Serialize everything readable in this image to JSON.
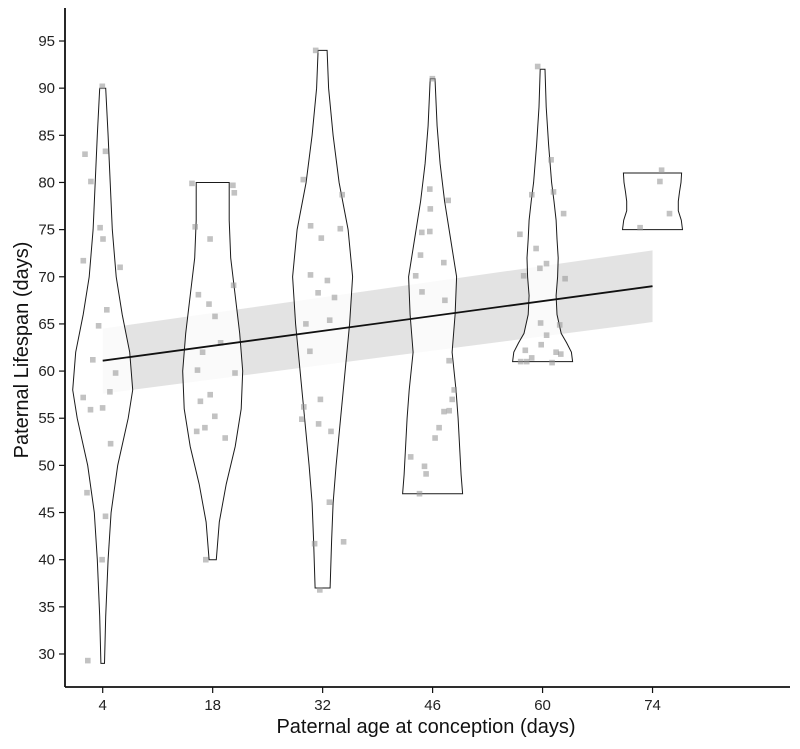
{
  "chart_data": {
    "type": "violin",
    "title": "",
    "xlabel": "Paternal age at conception (days)",
    "ylabel": "Paternal Lifespan (days)",
    "x_ticks": [
      4,
      18,
      32,
      46,
      60,
      74
    ],
    "y_ticks": [
      30,
      35,
      40,
      45,
      50,
      55,
      60,
      65,
      70,
      75,
      80,
      85,
      90,
      95
    ],
    "xlim": [
      -0.8,
      91.5
    ],
    "ylim": [
      26.5,
      98.5
    ],
    "grid": false,
    "legend": "none",
    "violins": [
      {
        "x": 4,
        "range": [
          29,
          90
        ],
        "profile": [
          [
            29,
            0.06
          ],
          [
            34,
            0.1
          ],
          [
            40,
            0.18
          ],
          [
            45,
            0.28
          ],
          [
            50,
            0.5
          ],
          [
            55,
            0.85
          ],
          [
            58,
            1.0
          ],
          [
            62,
            0.9
          ],
          [
            66,
            0.65
          ],
          [
            70,
            0.45
          ],
          [
            75,
            0.32
          ],
          [
            80,
            0.25
          ],
          [
            85,
            0.18
          ],
          [
            90,
            0.1
          ]
        ]
      },
      {
        "x": 18,
        "range": [
          40,
          80
        ],
        "profile": [
          [
            40,
            0.12
          ],
          [
            44,
            0.22
          ],
          [
            48,
            0.45
          ],
          [
            52,
            0.75
          ],
          [
            56,
            0.95
          ],
          [
            60,
            1.0
          ],
          [
            64,
            0.9
          ],
          [
            68,
            0.75
          ],
          [
            72,
            0.6
          ],
          [
            76,
            0.55
          ],
          [
            80,
            0.55
          ]
        ]
      },
      {
        "x": 32,
        "range": [
          37,
          94
        ],
        "profile": [
          [
            37,
            0.25
          ],
          [
            42,
            0.3
          ],
          [
            46,
            0.35
          ],
          [
            50,
            0.45
          ],
          [
            55,
            0.6
          ],
          [
            60,
            0.75
          ],
          [
            65,
            0.9
          ],
          [
            70,
            1.0
          ],
          [
            75,
            0.85
          ],
          [
            80,
            0.55
          ],
          [
            85,
            0.35
          ],
          [
            90,
            0.2
          ],
          [
            94,
            0.15
          ]
        ]
      },
      {
        "x": 46,
        "range": [
          47,
          91
        ],
        "profile": [
          [
            47,
            1.0
          ],
          [
            49,
            0.95
          ],
          [
            52,
            0.9
          ],
          [
            55,
            0.85
          ],
          [
            58,
            0.78
          ],
          [
            62,
            0.65
          ],
          [
            66,
            0.75
          ],
          [
            70,
            0.8
          ],
          [
            74,
            0.6
          ],
          [
            78,
            0.4
          ],
          [
            82,
            0.25
          ],
          [
            86,
            0.15
          ],
          [
            91,
            0.08
          ]
        ]
      },
      {
        "x": 60,
        "range": [
          61,
          92
        ],
        "profile": [
          [
            61,
            1.0
          ],
          [
            62,
            0.96
          ],
          [
            63,
            0.8
          ],
          [
            64,
            0.62
          ],
          [
            66,
            0.48
          ],
          [
            68,
            0.45
          ],
          [
            70,
            0.5
          ],
          [
            72,
            0.52
          ],
          [
            74,
            0.48
          ],
          [
            76,
            0.45
          ],
          [
            78,
            0.38
          ],
          [
            80,
            0.3
          ],
          [
            84,
            0.2
          ],
          [
            88,
            0.12
          ],
          [
            92,
            0.08
          ]
        ]
      },
      {
        "x": 74,
        "range": [
          75,
          81
        ],
        "profile": [
          [
            75,
            1.0
          ],
          [
            76,
            0.96
          ],
          [
            77,
            0.86
          ],
          [
            78,
            0.86
          ],
          [
            79,
            0.9
          ],
          [
            80,
            0.95
          ],
          [
            81,
            0.97
          ]
        ]
      }
    ],
    "regression": {
      "x": [
        4,
        74
      ],
      "y": [
        61.1,
        69.0
      ],
      "ci_lower": [
        57.6,
        65.2
      ],
      "ci_upper": [
        64.5,
        72.8
      ]
    },
    "points": [
      [
        4,
        90.2
      ],
      [
        4,
        83.3
      ],
      [
        4,
        83.0
      ],
      [
        4,
        80.1
      ],
      [
        4,
        75.2
      ],
      [
        4,
        74.0
      ],
      [
        4,
        71.7
      ],
      [
        4,
        71.0
      ],
      [
        4,
        66.5
      ],
      [
        4,
        64.8
      ],
      [
        4,
        61.2
      ],
      [
        4,
        59.8
      ],
      [
        4,
        57.8
      ],
      [
        4,
        57.2
      ],
      [
        4,
        56.1
      ],
      [
        4,
        55.9
      ],
      [
        4,
        52.3
      ],
      [
        4,
        47.1
      ],
      [
        4,
        44.6
      ],
      [
        4,
        40.0
      ],
      [
        4,
        29.3
      ],
      [
        18,
        79.9
      ],
      [
        18,
        79.7
      ],
      [
        18,
        78.9
      ],
      [
        18,
        75.3
      ],
      [
        18,
        74.0
      ],
      [
        18,
        69.1
      ],
      [
        18,
        68.1
      ],
      [
        18,
        67.1
      ],
      [
        18,
        65.8
      ],
      [
        18,
        63.0
      ],
      [
        18,
        62.0
      ],
      [
        18,
        60.1
      ],
      [
        18,
        59.8
      ],
      [
        18,
        57.5
      ],
      [
        18,
        56.8
      ],
      [
        18,
        55.2
      ],
      [
        18,
        54.0
      ],
      [
        18,
        53.6
      ],
      [
        18,
        52.9
      ],
      [
        18,
        40.0
      ],
      [
        32,
        94.0
      ],
      [
        32,
        80.3
      ],
      [
        32,
        78.7
      ],
      [
        32,
        75.4
      ],
      [
        32,
        75.1
      ],
      [
        32,
        74.1
      ],
      [
        32,
        70.2
      ],
      [
        32,
        69.6
      ],
      [
        32,
        68.3
      ],
      [
        32,
        67.8
      ],
      [
        32,
        65.4
      ],
      [
        32,
        65.0
      ],
      [
        32,
        62.1
      ],
      [
        32,
        57.0
      ],
      [
        32,
        56.2
      ],
      [
        32,
        54.9
      ],
      [
        32,
        54.4
      ],
      [
        32,
        53.6
      ],
      [
        32,
        46.1
      ],
      [
        32,
        41.9
      ],
      [
        32,
        41.7
      ],
      [
        32,
        36.8
      ],
      [
        46,
        91.0
      ],
      [
        46,
        79.3
      ],
      [
        46,
        78.1
      ],
      [
        46,
        77.2
      ],
      [
        46,
        74.8
      ],
      [
        46,
        74.7
      ],
      [
        46,
        72.3
      ],
      [
        46,
        71.5
      ],
      [
        46,
        70.1
      ],
      [
        46,
        68.4
      ],
      [
        46,
        67.5
      ],
      [
        46,
        61.1
      ],
      [
        46,
        58.0
      ],
      [
        46,
        57.0
      ],
      [
        46,
        55.8
      ],
      [
        46,
        55.7
      ],
      [
        46,
        54.0
      ],
      [
        46,
        52.9
      ],
      [
        46,
        50.9
      ],
      [
        46,
        49.9
      ],
      [
        46,
        49.1
      ],
      [
        46,
        47.0
      ],
      [
        60,
        92.3
      ],
      [
        60,
        82.4
      ],
      [
        60,
        79.0
      ],
      [
        60,
        78.7
      ],
      [
        60,
        76.7
      ],
      [
        60,
        74.5
      ],
      [
        60,
        73.0
      ],
      [
        60,
        71.4
      ],
      [
        60,
        70.9
      ],
      [
        60,
        70.1
      ],
      [
        60,
        69.8
      ],
      [
        60,
        65.1
      ],
      [
        60,
        64.9
      ],
      [
        60,
        63.8
      ],
      [
        60,
        62.8
      ],
      [
        60,
        62.2
      ],
      [
        60,
        62.0
      ],
      [
        60,
        61.8
      ],
      [
        60,
        61.4
      ],
      [
        60,
        61.0
      ],
      [
        60,
        61.0
      ],
      [
        60,
        60.9
      ],
      [
        74,
        81.3
      ],
      [
        74,
        80.1
      ],
      [
        74,
        76.7
      ],
      [
        74,
        75.2
      ]
    ]
  }
}
